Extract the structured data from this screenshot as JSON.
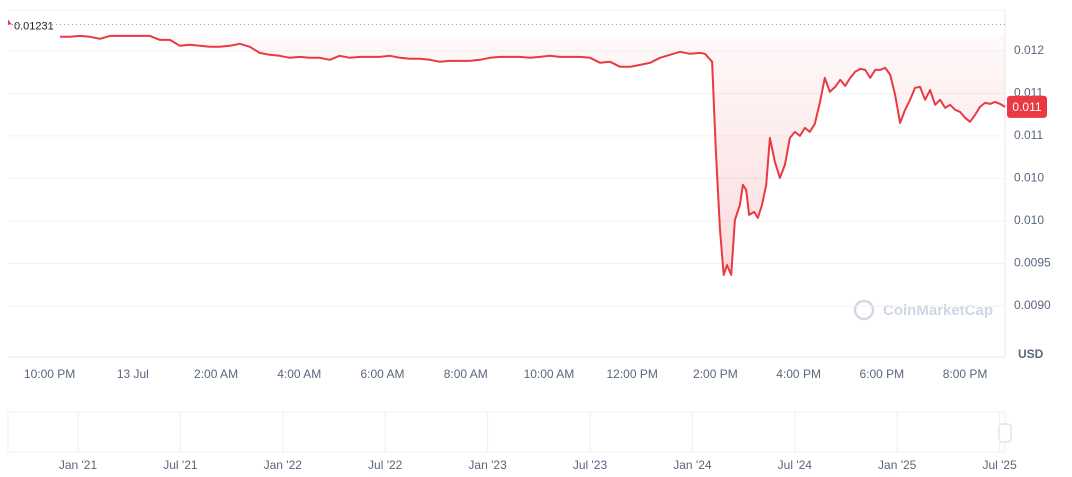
{
  "chart_data": {
    "type": "line",
    "color": "#ea3943",
    "x": [
      -1.75,
      -1.51,
      -1.27,
      -1.03,
      -0.79,
      -0.55,
      -0.31,
      -0.07,
      0.17,
      0.41,
      0.65,
      0.89,
      1.13,
      1.37,
      1.61,
      1.85,
      2.09,
      2.33,
      2.57,
      2.81,
      3.05,
      3.29,
      3.53,
      3.77,
      4.01,
      4.25,
      4.49,
      4.73,
      4.97,
      5.22,
      5.46,
      5.7,
      5.94,
      6.18,
      6.42,
      6.66,
      6.9,
      7.14,
      7.38,
      7.62,
      7.86,
      8.1,
      8.34,
      8.58,
      8.82,
      9.06,
      9.3,
      9.54,
      9.78,
      10.02,
      10.26,
      10.5,
      10.75,
      10.99,
      11.23,
      11.47,
      11.71,
      11.95,
      12.19,
      12.43,
      12.67,
      12.91,
      13.15,
      13.39,
      13.63,
      13.75,
      13.92,
      14.01,
      14.11,
      14.2,
      14.28,
      14.38,
      14.47,
      14.59,
      14.66,
      14.74,
      14.81,
      14.93,
      15.02,
      15.12,
      15.22,
      15.31,
      15.43,
      15.55,
      15.67,
      15.79,
      15.91,
      16.03,
      16.15,
      16.27,
      16.39,
      16.51,
      16.63,
      16.75,
      16.88,
      17.0,
      17.12,
      17.24,
      17.36,
      17.48,
      17.6,
      17.72,
      17.84,
      17.96,
      18.08,
      18.2,
      18.32,
      18.44,
      18.56,
      18.68,
      18.8,
      18.92,
      19.04,
      19.16,
      19.28,
      19.4,
      19.52,
      19.64,
      19.76,
      19.88,
      20.0,
      20.12,
      20.24,
      20.36,
      20.48,
      20.6,
      20.72,
      20.84,
      20.96
    ],
    "values": [
      0.012165,
      0.012165,
      0.012176,
      0.012165,
      0.012141,
      0.012176,
      0.012176,
      0.012176,
      0.012176,
      0.012176,
      0.012129,
      0.012129,
      0.012059,
      0.012071,
      0.012059,
      0.012047,
      0.012047,
      0.012059,
      0.012082,
      0.012047,
      0.011976,
      0.011953,
      0.011941,
      0.011918,
      0.011929,
      0.011918,
      0.011918,
      0.011894,
      0.011941,
      0.011918,
      0.011929,
      0.011929,
      0.011929,
      0.011941,
      0.011918,
      0.011906,
      0.011906,
      0.011894,
      0.011871,
      0.011882,
      0.011882,
      0.011882,
      0.011894,
      0.011918,
      0.011929,
      0.011929,
      0.011929,
      0.011918,
      0.011929,
      0.011941,
      0.011929,
      0.011929,
      0.011929,
      0.011918,
      0.011859,
      0.011871,
      0.011812,
      0.011812,
      0.011835,
      0.011859,
      0.011918,
      0.011953,
      0.011988,
      0.011965,
      0.011976,
      0.011965,
      0.011871,
      0.010835,
      0.009894,
      0.009365,
      0.009482,
      0.009365,
      0.010012,
      0.010188,
      0.010424,
      0.010365,
      0.010071,
      0.010106,
      0.010035,
      0.010188,
      0.010424,
      0.010976,
      0.010694,
      0.010506,
      0.010659,
      0.010976,
      0.011047,
      0.011,
      0.011094,
      0.011047,
      0.011141,
      0.011388,
      0.011682,
      0.011518,
      0.011576,
      0.011659,
      0.011588,
      0.011682,
      0.011753,
      0.011788,
      0.011776,
      0.011682,
      0.011776,
      0.011776,
      0.0118,
      0.011718,
      0.011482,
      0.011153,
      0.011306,
      0.011424,
      0.011565,
      0.011576,
      0.011424,
      0.011541,
      0.011365,
      0.011424,
      0.011329,
      0.011365,
      0.011306,
      0.011282,
      0.011212,
      0.011165,
      0.011247,
      0.011341,
      0.011388,
      0.011376,
      0.0114,
      0.011376,
      0.011341
    ],
    "xlim": [
      -3,
      20.96
    ],
    "xticks": [
      {
        "value": -2,
        "label": "10:00 PM"
      },
      {
        "value": 0,
        "label": "13 Jul"
      },
      {
        "value": 2,
        "label": "2:00 AM"
      },
      {
        "value": 4,
        "label": "4:00 AM"
      },
      {
        "value": 6,
        "label": "6:00 AM"
      },
      {
        "value": 8,
        "label": "8:00 AM"
      },
      {
        "value": 10,
        "label": "10:00 AM"
      },
      {
        "value": 12,
        "label": "12:00 PM"
      },
      {
        "value": 14,
        "label": "2:00 PM"
      },
      {
        "value": 16,
        "label": "4:00 PM"
      },
      {
        "value": 18,
        "label": "6:00 PM"
      },
      {
        "value": 20,
        "label": "8:00 PM"
      }
    ],
    "ylim": [
      0.0084,
      0.01248
    ],
    "yticks": [
      {
        "value": 0.009,
        "label": "0.0090"
      },
      0.0095,
      {
        "value": 0.01,
        "label": "0.010"
      },
      {
        "value": 0.0105,
        "label": "0.010"
      },
      {
        "value": 0.011,
        "label": "0.011"
      },
      {
        "value": 0.0115,
        "label": "0.011"
      },
      {
        "value": 0.012,
        "label": "0.012"
      }
    ],
    "grid": true,
    "reference_line": 0.01231,
    "last_price_label": "0.011",
    "y_unit": "USD",
    "watermark": "CoinMarketCap",
    "navigator_labels": [
      "Jan '21",
      "Jul '21",
      "Jan '22",
      "Jul '22",
      "Jan '23",
      "Jul '23",
      "Jan '24",
      "Jul '24",
      "Jan '25",
      "Jul '25"
    ]
  }
}
